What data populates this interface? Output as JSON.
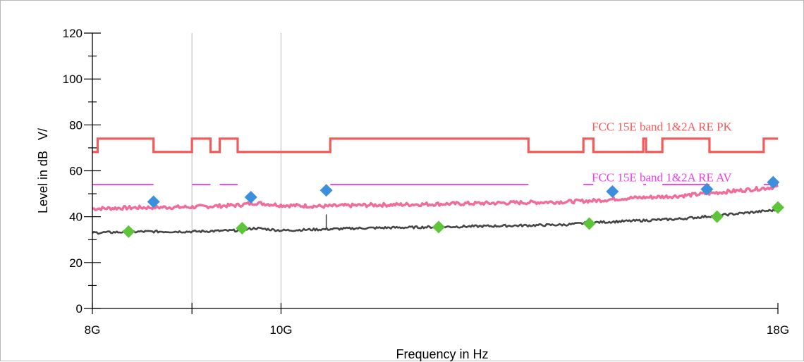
{
  "chart_data": {
    "type": "line",
    "xlabel": "Frequency in Hz",
    "ylabel": "Level in dB   V/",
    "x_scale": "log",
    "xlim_hz": [
      8000000000,
      18000000000
    ],
    "ylim": [
      0,
      120
    ],
    "y_ticks": [
      0,
      20,
      40,
      60,
      80,
      100,
      120
    ],
    "x_tick_labels": [
      {
        "value": 8000000000,
        "label": "8G"
      },
      {
        "value": 10000000000,
        "label": "10G"
      },
      {
        "value": 18000000000,
        "label": "18G"
      }
    ],
    "x_minor_ticks": [
      9000000000
    ],
    "x_grid": [
      9000000000,
      10000000000
    ],
    "y_grid": false,
    "colors": {
      "pk_limit": "#f45a5a",
      "av_limit": "#ee3ee8",
      "peak_trace": "#ef6c9b",
      "avg_trace": "#454545",
      "peak_markers": "#3c8fdc",
      "avg_markers": "#5ec43a"
    },
    "limit_lines": [
      {
        "label": "FCC 15E band 1&2A RE PK",
        "color": "#f45a5a",
        "segments": [
          [
            8000000000,
            8050000000,
            68.2
          ],
          [
            8050000000,
            8600000000,
            74
          ],
          [
            8600000000,
            9000000000,
            68.2
          ],
          [
            9000000000,
            9200000000,
            74
          ],
          [
            9200000000,
            9300000000,
            68.2
          ],
          [
            9300000000,
            9500000000,
            74
          ],
          [
            9500000000,
            10600000000,
            68.2
          ],
          [
            10600000000,
            13400000000,
            74
          ],
          [
            13400000000,
            14300000000,
            68.2
          ],
          [
            14300000000,
            14470000000,
            74
          ],
          [
            14470000000,
            15350000000,
            68.2
          ],
          [
            15350000000,
            15400000000,
            74
          ],
          [
            15400000000,
            15700000000,
            68.2
          ],
          [
            15700000000,
            16600000000,
            74
          ],
          [
            16600000000,
            17700000000,
            68.2
          ],
          [
            17700000000,
            18000000000,
            74
          ]
        ]
      },
      {
        "label": "FCC 15E band 1&2A RE AV",
        "color": "#ee3ee8",
        "segments": [
          [
            8000000000,
            8600000000,
            54
          ],
          [
            9000000000,
            9200000000,
            54
          ],
          [
            9300000000,
            9500000000,
            54
          ],
          [
            10600000000,
            13400000000,
            54
          ],
          [
            14300000000,
            14470000000,
            54
          ],
          [
            15350000000,
            15400000000,
            54
          ],
          [
            15700000000,
            16600000000,
            54
          ],
          [
            17700000000,
            18000000000,
            54
          ]
        ]
      }
    ],
    "series": [
      {
        "kind": "peak",
        "color": "#ef6c9b",
        "x": [
          8000000000,
          8500000000,
          9000000000,
          9500000000,
          9700000000,
          10000000000,
          10500000000,
          11000000000,
          12000000000,
          13000000000,
          14000000000,
          14500000000,
          15000000000,
          15500000000,
          16000000000,
          16500000000,
          17000000000,
          17500000000,
          18000000000
        ],
        "values": [
          43.5,
          44.0,
          44.2,
          45.0,
          46.0,
          45.0,
          44.5,
          45.0,
          45.5,
          46.0,
          46.5,
          47.0,
          48.0,
          48.5,
          49.0,
          50.0,
          51.0,
          52.0,
          53.0
        ]
      },
      {
        "kind": "average",
        "color": "#454545",
        "x": [
          8000000000,
          8500000000,
          9000000000,
          9500000000,
          9700000000,
          10000000000,
          10500000000,
          11000000000,
          12000000000,
          13000000000,
          14000000000,
          14500000000,
          15000000000,
          15500000000,
          16000000000,
          16500000000,
          17000000000,
          17500000000,
          18000000000
        ],
        "values": [
          33.0,
          33.5,
          33.5,
          34.0,
          35.0,
          34.0,
          34.5,
          35.0,
          35.5,
          36.0,
          36.5,
          37.5,
          38.0,
          38.5,
          39.0,
          40.0,
          41.0,
          42.0,
          43.0
        ],
        "spikes": [
          {
            "x": 10550000000,
            "value": 41
          }
        ]
      }
    ],
    "peak_markers": [
      {
        "x": 8600000000,
        "value": 46.5
      },
      {
        "x": 9650000000,
        "value": 48.5
      },
      {
        "x": 10550000000,
        "value": 51.5
      },
      {
        "x": 14800000000,
        "value": 51.0
      },
      {
        "x": 16550000000,
        "value": 52.0
      },
      {
        "x": 17900000000,
        "value": 55.0
      }
    ],
    "avg_markers": [
      {
        "x": 8350000000,
        "value": 33.5
      },
      {
        "x": 9550000000,
        "value": 35.0
      },
      {
        "x": 12050000000,
        "value": 35.5
      },
      {
        "x": 14400000000,
        "value": 37.0
      },
      {
        "x": 16750000000,
        "value": 40.0
      },
      {
        "x": 18000000000,
        "value": 44.0
      }
    ]
  }
}
